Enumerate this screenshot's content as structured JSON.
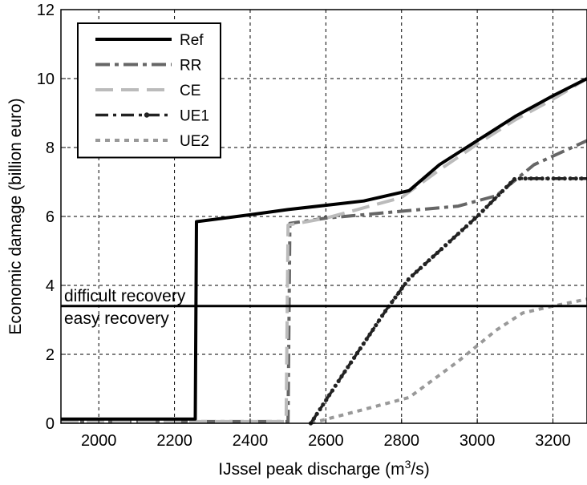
{
  "chart_data": {
    "type": "line",
    "title": "",
    "xlabel_prefix": "IJssel peak discharge (m",
    "xlabel_sup": "3",
    "xlabel_suffix": "/s)",
    "ylabel": "Economic damage (billion euro)",
    "xlim": [
      1900,
      3290
    ],
    "ylim": [
      0,
      12
    ],
    "x_ticks": [
      2000,
      2200,
      2400,
      2600,
      2800,
      3000,
      3200
    ],
    "y_ticks": [
      0,
      2,
      4,
      6,
      8,
      10,
      12
    ],
    "grid": true,
    "legend_position": "top-left",
    "series": [
      {
        "name": "Ref",
        "style": "solid",
        "color": "#000000",
        "points": [
          [
            1900,
            0.12
          ],
          [
            2255,
            0.12
          ],
          [
            2258,
            5.85
          ],
          [
            2400,
            6.05
          ],
          [
            2500,
            6.2
          ],
          [
            2700,
            6.45
          ],
          [
            2820,
            6.75
          ],
          [
            2900,
            7.5
          ],
          [
            3000,
            8.2
          ],
          [
            3100,
            8.9
          ],
          [
            3200,
            9.5
          ],
          [
            3290,
            10.0
          ]
        ]
      },
      {
        "name": "RR",
        "style": "dashdot",
        "color": "#666666",
        "points": [
          [
            1900,
            0.05
          ],
          [
            2500,
            0.05
          ],
          [
            2505,
            5.8
          ],
          [
            2600,
            5.95
          ],
          [
            2800,
            6.15
          ],
          [
            2950,
            6.3
          ],
          [
            3050,
            6.6
          ],
          [
            3150,
            7.5
          ],
          [
            3290,
            8.2
          ]
        ]
      },
      {
        "name": "CE",
        "style": "dashed",
        "color": "#bbbbbb",
        "points": [
          [
            1900,
            0.05
          ],
          [
            2495,
            0.05
          ],
          [
            2500,
            5.75
          ],
          [
            2600,
            5.95
          ],
          [
            2800,
            6.55
          ],
          [
            2900,
            7.35
          ],
          [
            3000,
            8.1
          ],
          [
            3100,
            8.8
          ],
          [
            3200,
            9.4
          ],
          [
            3290,
            10.0
          ]
        ]
      },
      {
        "name": "UE1",
        "style": "dashdot-markers",
        "color": "#222222",
        "points": [
          [
            2560,
            0.0
          ],
          [
            2650,
            1.5
          ],
          [
            2760,
            3.3
          ],
          [
            2820,
            4.2
          ],
          [
            2900,
            5.0
          ],
          [
            3000,
            6.0
          ],
          [
            3100,
            7.1
          ],
          [
            3290,
            7.1
          ]
        ]
      },
      {
        "name": "UE2",
        "style": "dotted",
        "color": "#999999",
        "points": [
          [
            2560,
            0.0
          ],
          [
            2700,
            0.4
          ],
          [
            2820,
            0.75
          ],
          [
            2950,
            1.8
          ],
          [
            3050,
            2.7
          ],
          [
            3120,
            3.2
          ],
          [
            3200,
            3.4
          ],
          [
            3290,
            3.6
          ]
        ]
      }
    ],
    "threshold": {
      "y": 3.4,
      "label_above": "difficult recovery",
      "label_below": "easy recovery"
    }
  }
}
